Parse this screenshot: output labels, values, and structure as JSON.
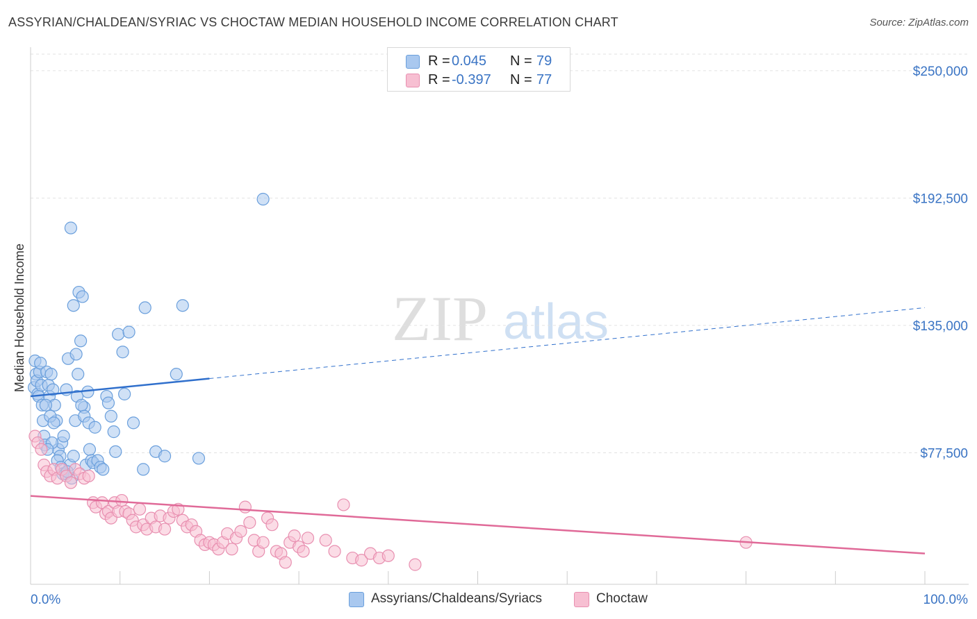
{
  "title": "ASSYRIAN/CHALDEAN/SYRIAC VS CHOCTAW MEDIAN HOUSEHOLD INCOME CORRELATION CHART",
  "source": "Source: ZipAtlas.com",
  "watermark": {
    "zip": "ZIP",
    "atlas": "atlas"
  },
  "colors": {
    "blue_fill": "#a9c8ef",
    "blue_stroke": "#6a9fdc",
    "blue_line": "#2f6fcc",
    "pink_fill": "#f7bfd2",
    "pink_stroke": "#e88fb0",
    "pink_line": "#e06a98",
    "label_blue": "#3a74c4",
    "grid": "#e2e2e2"
  },
  "legend": {
    "rows": [
      {
        "r_label": "R =",
        "r_value": "0.045",
        "n_label": "N =",
        "n_value": "79",
        "color": "#a9c8ef"
      },
      {
        "r_label": "R =",
        "r_value": "-0.397",
        "n_label": "N =",
        "n_value": "77",
        "color": "#f7bfd2"
      }
    ]
  },
  "chart_data": {
    "type": "scatter",
    "title": "ASSYRIAN/CHALDEAN/SYRIAC VS CHOCTAW MEDIAN HOUSEHOLD INCOME CORRELATION CHART",
    "ylabel": "Median Household Income",
    "xlabel": "",
    "x_tick_labels": [
      "0.0%",
      "100.0%"
    ],
    "y_ticks": [
      77500,
      135000,
      192500,
      250000
    ],
    "y_tick_labels": [
      "$77,500",
      "$135,000",
      "$192,500",
      "$250,000"
    ],
    "xlim": [
      0,
      100
    ],
    "ylim": [
      25000,
      260000
    ],
    "grid": true,
    "legend_position": "top-center",
    "series": [
      {
        "name": "Assyrians/Chaldeans/Syriacs",
        "color": "#a9c8ef",
        "points": [
          [
            0.4,
            107000
          ],
          [
            0.5,
            119000
          ],
          [
            0.6,
            113000
          ],
          [
            0.7,
            110000
          ],
          [
            0.8,
            104000
          ],
          [
            0.9,
            103000
          ],
          [
            1.0,
            114000
          ],
          [
            1.1,
            118000
          ],
          [
            1.2,
            108000
          ],
          [
            1.3,
            99000
          ],
          [
            1.4,
            92000
          ],
          [
            1.5,
            85000
          ],
          [
            1.6,
            81000
          ],
          [
            1.8,
            114000
          ],
          [
            2.0,
            108000
          ],
          [
            2.1,
            103000
          ],
          [
            2.3,
            113000
          ],
          [
            2.5,
            106000
          ],
          [
            2.7,
            99000
          ],
          [
            2.9,
            92000
          ],
          [
            3.1,
            79000
          ],
          [
            3.3,
            76000
          ],
          [
            3.5,
            82000
          ],
          [
            3.7,
            85000
          ],
          [
            4.0,
            106000
          ],
          [
            4.2,
            120000
          ],
          [
            4.4,
            72000
          ],
          [
            4.6,
            66000
          ],
          [
            4.8,
            76000
          ],
          [
            5.0,
            92000
          ],
          [
            5.2,
            103000
          ],
          [
            5.4,
            150000
          ],
          [
            5.6,
            128000
          ],
          [
            5.8,
            148000
          ],
          [
            6.0,
            98000
          ],
          [
            6.2,
            72000
          ],
          [
            6.4,
            105000
          ],
          [
            6.6,
            79000
          ],
          [
            6.8,
            74000
          ],
          [
            7.0,
            73000
          ],
          [
            2.4,
            82000
          ],
          [
            1.9,
            79000
          ],
          [
            1.7,
            99000
          ],
          [
            2.2,
            94000
          ],
          [
            2.6,
            91000
          ],
          [
            3.0,
            74000
          ],
          [
            3.4,
            71000
          ],
          [
            3.6,
            68000
          ],
          [
            3.9,
            68000
          ],
          [
            4.1,
            69000
          ],
          [
            4.5,
            179000
          ],
          [
            4.8,
            144000
          ],
          [
            5.1,
            122000
          ],
          [
            5.3,
            113000
          ],
          [
            5.7,
            99000
          ],
          [
            6.0,
            94000
          ],
          [
            6.5,
            91000
          ],
          [
            7.2,
            89000
          ],
          [
            7.5,
            74000
          ],
          [
            7.8,
            71000
          ],
          [
            8.1,
            70000
          ],
          [
            8.5,
            103000
          ],
          [
            8.7,
            100000
          ],
          [
            9.0,
            94000
          ],
          [
            9.3,
            87000
          ],
          [
            9.5,
            78000
          ],
          [
            9.8,
            131000
          ],
          [
            10.3,
            123000
          ],
          [
            10.5,
            104000
          ],
          [
            11.0,
            132000
          ],
          [
            11.5,
            91000
          ],
          [
            12.6,
            70000
          ],
          [
            12.8,
            143000
          ],
          [
            14.0,
            78000
          ],
          [
            15.0,
            76000
          ],
          [
            16.3,
            113000
          ],
          [
            17.0,
            144000
          ],
          [
            18.8,
            75000
          ],
          [
            26.0,
            192000
          ]
        ]
      },
      {
        "name": "Choctaw",
        "color": "#f7bfd2",
        "points": [
          [
            0.5,
            85000
          ],
          [
            0.8,
            82000
          ],
          [
            1.2,
            79000
          ],
          [
            1.5,
            72000
          ],
          [
            1.8,
            69000
          ],
          [
            2.2,
            67000
          ],
          [
            2.6,
            70000
          ],
          [
            3.0,
            66000
          ],
          [
            3.5,
            70000
          ],
          [
            4.0,
            67000
          ],
          [
            4.5,
            64000
          ],
          [
            5.0,
            70000
          ],
          [
            5.5,
            68000
          ],
          [
            6.0,
            66000
          ],
          [
            6.5,
            67000
          ],
          [
            7.0,
            55000
          ],
          [
            7.3,
            53000
          ],
          [
            8.0,
            55000
          ],
          [
            8.4,
            50000
          ],
          [
            8.7,
            51000
          ],
          [
            9.0,
            48000
          ],
          [
            9.4,
            55000
          ],
          [
            9.8,
            51000
          ],
          [
            10.2,
            56000
          ],
          [
            10.6,
            51000
          ],
          [
            11.0,
            50000
          ],
          [
            11.4,
            47000
          ],
          [
            11.8,
            44000
          ],
          [
            12.2,
            52000
          ],
          [
            12.6,
            45000
          ],
          [
            13.0,
            43000
          ],
          [
            13.5,
            48000
          ],
          [
            14.0,
            44000
          ],
          [
            14.5,
            49000
          ],
          [
            15.0,
            43000
          ],
          [
            15.5,
            48000
          ],
          [
            16.0,
            51000
          ],
          [
            16.5,
            52000
          ],
          [
            17.0,
            47000
          ],
          [
            17.5,
            44000
          ],
          [
            18.0,
            45000
          ],
          [
            18.5,
            42000
          ],
          [
            19.0,
            38000
          ],
          [
            19.5,
            36000
          ],
          [
            20.0,
            37000
          ],
          [
            20.5,
            36000
          ],
          [
            21.0,
            34000
          ],
          [
            21.5,
            37000
          ],
          [
            22.0,
            41000
          ],
          [
            22.5,
            34000
          ],
          [
            23.0,
            39000
          ],
          [
            23.5,
            42000
          ],
          [
            24.0,
            53000
          ],
          [
            24.5,
            46000
          ],
          [
            25.0,
            38000
          ],
          [
            25.5,
            33000
          ],
          [
            26.0,
            37000
          ],
          [
            26.5,
            48000
          ],
          [
            27.0,
            45000
          ],
          [
            27.5,
            33000
          ],
          [
            28.0,
            32000
          ],
          [
            28.5,
            28000
          ],
          [
            29.0,
            37000
          ],
          [
            29.5,
            40000
          ],
          [
            30.0,
            35000
          ],
          [
            30.5,
            33000
          ],
          [
            31.0,
            39000
          ],
          [
            33.0,
            38000
          ],
          [
            34.0,
            33000
          ],
          [
            35.0,
            54000
          ],
          [
            36.0,
            30000
          ],
          [
            37.0,
            29000
          ],
          [
            38.0,
            32000
          ],
          [
            39.0,
            30000
          ],
          [
            40.0,
            31000
          ],
          [
            43.0,
            27000
          ],
          [
            80.0,
            37000
          ]
        ]
      }
    ],
    "trend_lines": [
      {
        "series": "Assyrians/Chaldeans/Syriacs",
        "x0": 0,
        "y0": 103000,
        "x1": 100,
        "y1": 143000,
        "solid_until_x": 20
      },
      {
        "series": "Choctaw",
        "x0": 0,
        "y0": 58000,
        "x1": 100,
        "y1": 32000
      }
    ]
  },
  "bottom_legend": [
    {
      "label": "Assyrians/Chaldeans/Syriacs",
      "color": "#a9c8ef"
    },
    {
      "label": "Choctaw",
      "color": "#f7bfd2"
    }
  ]
}
